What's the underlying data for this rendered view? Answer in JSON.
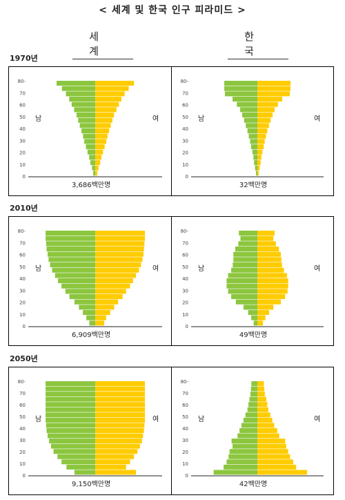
{
  "title": "< 세계 및 한국 인구 피라미드 >",
  "columns": {
    "world": "세 계",
    "korea": "한 국"
  },
  "years": [
    "1970년",
    "2010년",
    "2050년"
  ],
  "labels": {
    "male": "남",
    "female": "여"
  },
  "colors": {
    "male": "#8cc63f",
    "female": "#ffcc00"
  },
  "chart_data": [
    {
      "type": "bar",
      "region": "world",
      "year": "1970년",
      "total": "3,686백만명",
      "age_ticks": [
        "0",
        "10",
        "20",
        "30",
        "40",
        "50",
        "60",
        "70",
        "80-"
      ],
      "male": [
        0.05,
        0.08,
        0.12,
        0.15,
        0.19,
        0.23,
        0.27,
        0.3,
        0.34,
        0.38,
        0.42,
        0.46,
        0.52,
        0.58,
        0.64,
        0.72,
        0.82,
        0.95
      ],
      "female": [
        0.05,
        0.08,
        0.12,
        0.15,
        0.19,
        0.23,
        0.27,
        0.3,
        0.34,
        0.38,
        0.42,
        0.46,
        0.52,
        0.58,
        0.64,
        0.72,
        0.82,
        0.95
      ]
    },
    {
      "type": "bar",
      "region": "korea",
      "year": "1970년",
      "total": "32백만명",
      "age_ticks": [
        "0",
        "10",
        "20",
        "30",
        "40",
        "50",
        "60",
        "70",
        "80-"
      ],
      "male": [
        0.04,
        0.07,
        0.1,
        0.12,
        0.15,
        0.19,
        0.22,
        0.26,
        0.3,
        0.35,
        0.4,
        0.46,
        0.52,
        0.62,
        0.75,
        0.98,
        1.0,
        1.0
      ],
      "female": [
        0.04,
        0.07,
        0.1,
        0.12,
        0.15,
        0.19,
        0.22,
        0.26,
        0.3,
        0.35,
        0.4,
        0.46,
        0.52,
        0.62,
        0.75,
        0.98,
        1.0,
        1.0
      ]
    },
    {
      "type": "bar",
      "region": "world",
      "year": "2010년",
      "total": "6,909백만명",
      "age_ticks": [
        "0",
        "10",
        "20",
        "30",
        "40",
        "50",
        "60",
        "70",
        "80-"
      ],
      "male": [
        0.12,
        0.18,
        0.25,
        0.33,
        0.42,
        0.52,
        0.6,
        0.68,
        0.75,
        0.81,
        0.87,
        0.91,
        0.94,
        0.96,
        0.98,
        0.99,
        1.0,
        1.0
      ],
      "female": [
        0.18,
        0.22,
        0.3,
        0.38,
        0.46,
        0.55,
        0.62,
        0.7,
        0.76,
        0.82,
        0.88,
        0.92,
        0.95,
        0.97,
        0.98,
        0.99,
        1.0,
        1.0
      ]
    },
    {
      "type": "bar",
      "region": "korea",
      "year": "2010년",
      "total": "49백만명",
      "age_ticks": [
        "0",
        "10",
        "20",
        "30",
        "40",
        "50",
        "60",
        "70",
        "80-"
      ],
      "male": [
        0.12,
        0.2,
        0.3,
        0.45,
        0.7,
        0.85,
        0.95,
        1.0,
        1.0,
        0.95,
        0.85,
        0.8,
        0.78,
        0.78,
        0.72,
        0.62,
        0.55,
        0.6
      ],
      "female": [
        0.18,
        0.26,
        0.38,
        0.52,
        0.76,
        0.9,
        0.98,
        1.0,
        1.0,
        0.96,
        0.86,
        0.8,
        0.78,
        0.76,
        0.7,
        0.6,
        0.52,
        0.56
      ],
      "scale": 0.48
    },
    {
      "type": "bar",
      "region": "world",
      "year": "2050년",
      "total": "9,150백만명",
      "age_ticks": [
        "0",
        "10",
        "20",
        "30",
        "40",
        "50",
        "60",
        "70",
        "80-"
      ],
      "male": [
        0.42,
        0.58,
        0.68,
        0.76,
        0.84,
        0.89,
        0.93,
        0.96,
        0.98,
        0.99,
        1.0,
        1.0,
        1.0,
        1.0,
        1.0,
        1.0,
        1.0,
        1.0
      ],
      "female": [
        0.82,
        0.62,
        0.7,
        0.78,
        0.85,
        0.9,
        0.94,
        0.96,
        0.98,
        0.99,
        1.0,
        1.0,
        1.0,
        1.0,
        1.0,
        1.0,
        1.0,
        1.0
      ]
    },
    {
      "type": "bar",
      "region": "korea",
      "year": "2050년",
      "total": "42백만명",
      "age_ticks": [
        "0",
        "10",
        "20",
        "30",
        "40",
        "50",
        "60",
        "70",
        "80-"
      ],
      "male": [
        0.88,
        0.68,
        0.62,
        0.58,
        0.56,
        0.5,
        0.52,
        0.4,
        0.36,
        0.32,
        0.28,
        0.24,
        0.2,
        0.18,
        0.16,
        0.14,
        0.13,
        0.12
      ],
      "female": [
        1.0,
        0.78,
        0.72,
        0.66,
        0.62,
        0.58,
        0.56,
        0.44,
        0.4,
        0.34,
        0.3,
        0.26,
        0.22,
        0.2,
        0.18,
        0.15,
        0.14,
        0.13
      ]
    }
  ]
}
